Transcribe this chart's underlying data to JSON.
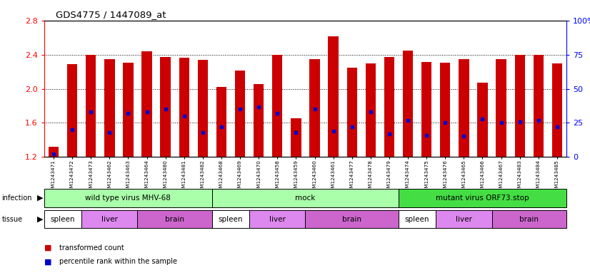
{
  "title": "GDS4775 / 1447089_at",
  "samples": [
    "GSM1243471",
    "GSM1243472",
    "GSM1243473",
    "GSM1243462",
    "GSM1243463",
    "GSM1243464",
    "GSM1243480",
    "GSM1243481",
    "GSM1243482",
    "GSM1243468",
    "GSM1243469",
    "GSM1243470",
    "GSM1243458",
    "GSM1243459",
    "GSM1243460",
    "GSM1243461",
    "GSM1243477",
    "GSM1243478",
    "GSM1243479",
    "GSM1243474",
    "GSM1243475",
    "GSM1243476",
    "GSM1243465",
    "GSM1243466",
    "GSM1243467",
    "GSM1243483",
    "GSM1243484",
    "GSM1243485"
  ],
  "transformed_count": [
    1.32,
    2.29,
    2.4,
    2.35,
    2.31,
    2.44,
    2.38,
    2.37,
    2.34,
    2.02,
    2.22,
    2.06,
    2.4,
    1.65,
    2.35,
    2.62,
    2.25,
    2.3,
    2.38,
    2.45,
    2.32,
    2.31,
    2.35,
    2.07,
    2.35,
    2.4,
    2.4,
    2.3
  ],
  "percentile": [
    2,
    20,
    33,
    18,
    32,
    33,
    35,
    30,
    18,
    22,
    35,
    37,
    32,
    18,
    35,
    19,
    22,
    33,
    17,
    27,
    16,
    25,
    15,
    28,
    25,
    26,
    27,
    22
  ],
  "y_min": 1.2,
  "y_max": 2.8,
  "y_ticks": [
    1.2,
    1.6,
    2.0,
    2.4,
    2.8
  ],
  "right_ticks": [
    0,
    25,
    50,
    75,
    100
  ],
  "bar_color": "#cc0000",
  "percentile_color": "#0000cc",
  "infection_row": [
    {
      "label": "wild type virus MHV-68",
      "start": 0,
      "end": 8,
      "color": "#aaffaa"
    },
    {
      "label": "mock",
      "start": 9,
      "end": 18,
      "color": "#aaffaa"
    },
    {
      "label": "mutant virus ORF73.stop",
      "start": 19,
      "end": 27,
      "color": "#44dd44"
    }
  ],
  "tissue_row": [
    {
      "label": "spleen",
      "start": 0,
      "end": 1,
      "color": "#ffffff"
    },
    {
      "label": "liver",
      "start": 2,
      "end": 4,
      "color": "#dd88ee"
    },
    {
      "label": "brain",
      "start": 5,
      "end": 8,
      "color": "#cc66cc"
    },
    {
      "label": "spleen",
      "start": 9,
      "end": 10,
      "color": "#ffffff"
    },
    {
      "label": "liver",
      "start": 11,
      "end": 13,
      "color": "#dd88ee"
    },
    {
      "label": "brain",
      "start": 14,
      "end": 18,
      "color": "#cc66cc"
    },
    {
      "label": "spleen",
      "start": 19,
      "end": 20,
      "color": "#ffffff"
    },
    {
      "label": "liver",
      "start": 21,
      "end": 23,
      "color": "#dd88ee"
    },
    {
      "label": "brain",
      "start": 24,
      "end": 27,
      "color": "#cc66cc"
    }
  ],
  "bg_color": "#f0f0f0"
}
